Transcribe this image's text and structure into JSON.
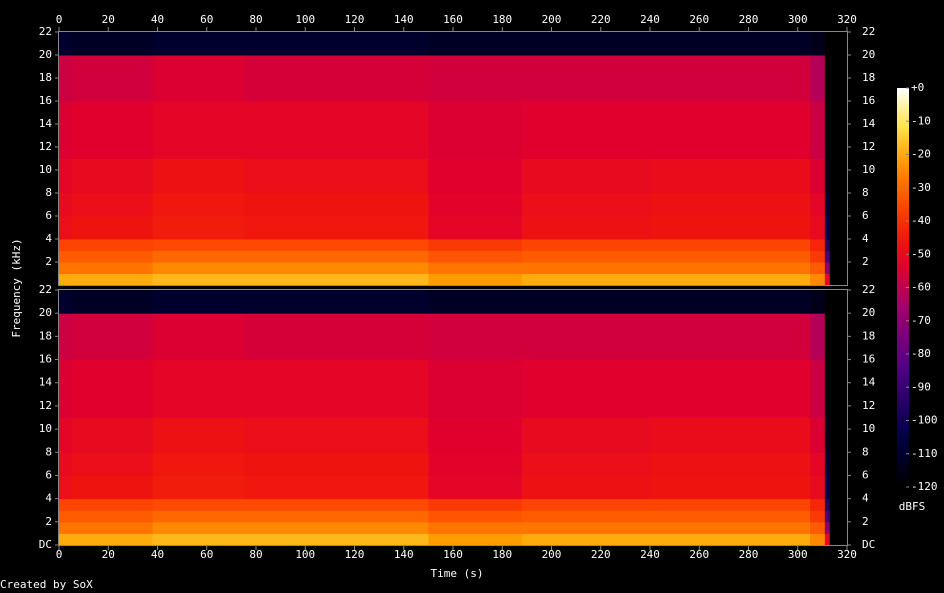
{
  "chart_data": {
    "type": "heatmap",
    "xlabel": "Time (s)",
    "ylabel": "Frequency (kHz)",
    "footer": "Created by SoX",
    "xlim": [
      0,
      320
    ],
    "xticks": [
      0,
      20,
      40,
      60,
      80,
      100,
      120,
      140,
      160,
      180,
      200,
      220,
      240,
      260,
      280,
      300,
      320
    ],
    "ylim": [
      0,
      22
    ],
    "x_bins": [
      0,
      5,
      38,
      75,
      150,
      188,
      240,
      305,
      311,
      313,
      320
    ],
    "y_bins": [
      0,
      1,
      2,
      3,
      4,
      6,
      8,
      11,
      16,
      20,
      22
    ],
    "channels": [
      {
        "yticks": [
          2,
          4,
          6,
          8,
          10,
          12,
          14,
          16,
          18,
          20,
          22
        ],
        "values": [
          [
            -20,
            -20,
            -18,
            -18,
            -22,
            -20,
            -20,
            -25,
            -50,
            -120
          ],
          [
            -28,
            -28,
            -25,
            -25,
            -28,
            -28,
            -28,
            -32,
            -70,
            -120
          ],
          [
            -32,
            -32,
            -30,
            -30,
            -33,
            -32,
            -32,
            -38,
            -85,
            -120
          ],
          [
            -36,
            -36,
            -35,
            -35,
            -38,
            -36,
            -36,
            -42,
            -95,
            -120
          ],
          [
            -48,
            -46,
            -44,
            -45,
            -52,
            -47,
            -46,
            -50,
            -105,
            -120
          ],
          [
            -50,
            -48,
            -45,
            -46,
            -53,
            -48,
            -47,
            -52,
            -110,
            -120
          ],
          [
            -52,
            -50,
            -47,
            -48,
            -54,
            -50,
            -49,
            -55,
            -115,
            -120
          ],
          [
            -55,
            -54,
            -52,
            -52,
            -55,
            -54,
            -54,
            -58,
            -118,
            -120
          ],
          [
            -58,
            -57,
            -55,
            -56,
            -57,
            -57,
            -57,
            -62,
            -120,
            -120
          ],
          [
            -110,
            -112,
            -110,
            -110,
            -112,
            -112,
            -112,
            -114,
            -120,
            -120
          ]
        ]
      },
      {
        "yticks": [
          {
            "value": 0,
            "label": "DC"
          },
          2,
          4,
          6,
          8,
          10,
          12,
          14,
          16,
          18,
          20,
          22
        ],
        "values": [
          [
            -20,
            -20,
            -18,
            -18,
            -22,
            -20,
            -20,
            -25,
            -50,
            -120
          ],
          [
            -28,
            -28,
            -25,
            -25,
            -28,
            -28,
            -28,
            -32,
            -70,
            -120
          ],
          [
            -32,
            -32,
            -30,
            -30,
            -33,
            -32,
            -32,
            -38,
            -85,
            -120
          ],
          [
            -36,
            -36,
            -35,
            -35,
            -38,
            -36,
            -36,
            -42,
            -95,
            -120
          ],
          [
            -48,
            -46,
            -44,
            -45,
            -52,
            -47,
            -46,
            -50,
            -105,
            -120
          ],
          [
            -50,
            -48,
            -45,
            -46,
            -53,
            -48,
            -47,
            -52,
            -110,
            -120
          ],
          [
            -52,
            -50,
            -47,
            -48,
            -54,
            -50,
            -49,
            -55,
            -115,
            -120
          ],
          [
            -55,
            -54,
            -52,
            -52,
            -55,
            -54,
            -54,
            -58,
            -118,
            -120
          ],
          [
            -58,
            -57,
            -55,
            -56,
            -57,
            -57,
            -57,
            -62,
            -120,
            -120
          ],
          [
            -110,
            -112,
            -110,
            -110,
            -112,
            -112,
            -112,
            -114,
            -120,
            -120
          ]
        ]
      }
    ],
    "colorbar": {
      "label": "dBFS",
      "zlim": [
        -120,
        0
      ],
      "ticks": [
        {
          "value": 0,
          "label": "+0"
        },
        -10,
        -20,
        -30,
        -40,
        -50,
        -60,
        -70,
        -80,
        -90,
        -100,
        -110,
        -120
      ]
    }
  }
}
